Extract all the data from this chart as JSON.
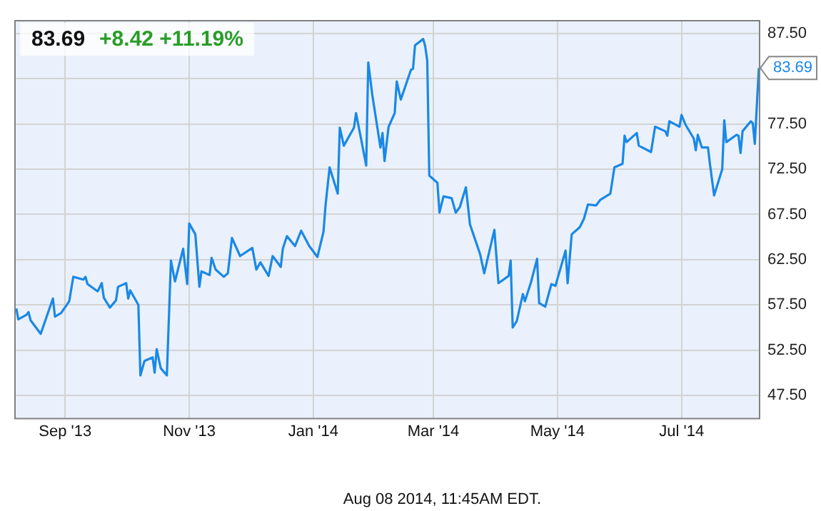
{
  "chart_data": {
    "type": "line",
    "title": "83.69",
    "subtitle": "+8.42  +11.19%",
    "annotations": [
      {
        "text": "83.69",
        "x": "2014-08-08",
        "y": 83.69
      },
      "Aug 08 2014, 11:45AM EDT."
    ],
    "xlim": [
      "2013-08-07",
      "2014-08-08"
    ],
    "xticks": [
      {
        "value": "2013-09-01",
        "label": "Sep '13"
      },
      {
        "value": "2013-11-01",
        "label": "Nov '13"
      },
      {
        "value": "2014-01-01",
        "label": "Jan '14"
      },
      {
        "value": "2014-03-01",
        "label": "Mar '14"
      },
      {
        "value": "2014-05-01",
        "label": "May '14"
      },
      {
        "value": "2014-07-01",
        "label": "Jul '14"
      }
    ],
    "ylim": [
      45,
      89
    ],
    "yticks": [
      {
        "value": 47.5,
        "label": "47.50"
      },
      {
        "value": 52.5,
        "label": "52.50"
      },
      {
        "value": 57.5,
        "label": "57.50"
      },
      {
        "value": 62.5,
        "label": "62.50"
      },
      {
        "value": 67.5,
        "label": "67.50"
      },
      {
        "value": 72.5,
        "label": "72.50"
      },
      {
        "value": 77.5,
        "label": "77.50"
      },
      {
        "value": 82.5,
        "label": null
      },
      {
        "value": 87.5,
        "label": "87.50"
      }
    ],
    "grid": true,
    "legend": false,
    "marker": "none",
    "line_style": "solid",
    "series": [
      {
        "color": "#1a88e6",
        "x": [
          "2013-08-08",
          "2013-08-09",
          "2013-08-13",
          "2013-08-14",
          "2013-08-15",
          "2013-08-20",
          "2013-08-26",
          "2013-08-27",
          "2013-08-30",
          "2013-09-03",
          "2013-09-05",
          "2013-09-10",
          "2013-09-11",
          "2013-09-12",
          "2013-09-17",
          "2013-09-19",
          "2013-09-20",
          "2013-09-23",
          "2013-09-26",
          "2013-09-27",
          "2013-10-01",
          "2013-10-02",
          "2013-10-03",
          "2013-10-07",
          "2013-10-08",
          "2013-10-10",
          "2013-10-14",
          "2013-10-15",
          "2013-10-16",
          "2013-10-18",
          "2013-10-21",
          "2013-10-23",
          "2013-10-25",
          "2013-10-29",
          "2013-10-31",
          "2013-11-01",
          "2013-11-04",
          "2013-11-06",
          "2013-11-07",
          "2013-11-11",
          "2013-11-12",
          "2013-11-14",
          "2013-11-18",
          "2013-11-20",
          "2013-11-22",
          "2013-11-26",
          "2013-12-02",
          "2013-12-04",
          "2013-12-06",
          "2013-12-10",
          "2013-12-12",
          "2013-12-16",
          "2013-12-17",
          "2013-12-19",
          "2013-12-23",
          "2013-12-26",
          "2013-12-30",
          "2014-01-03",
          "2014-01-06",
          "2014-01-07",
          "2014-01-09",
          "2014-01-13",
          "2014-01-14",
          "2014-01-16",
          "2014-01-21",
          "2014-01-22",
          "2014-01-27",
          "2014-01-28",
          "2014-01-30",
          "2014-02-03",
          "2014-02-04",
          "2014-02-05",
          "2014-02-07",
          "2014-02-10",
          "2014-02-11",
          "2014-02-13",
          "2014-02-18",
          "2014-02-19",
          "2014-02-20",
          "2014-02-24",
          "2014-02-25",
          "2014-02-26",
          "2014-02-27",
          "2014-03-03",
          "2014-03-04",
          "2014-03-06",
          "2014-03-10",
          "2014-03-12",
          "2014-03-14",
          "2014-03-17",
          "2014-03-19",
          "2014-03-24",
          "2014-03-26",
          "2014-03-31",
          "2014-04-02",
          "2014-04-07",
          "2014-04-08",
          "2014-04-09",
          "2014-04-11",
          "2014-04-14",
          "2014-04-15",
          "2014-04-18",
          "2014-04-21",
          "2014-04-22",
          "2014-04-25",
          "2014-04-28",
          "2014-04-30",
          "2014-05-05",
          "2014-05-06",
          "2014-05-08",
          "2014-05-12",
          "2014-05-14",
          "2014-05-16",
          "2014-05-20",
          "2014-05-22",
          "2014-05-27",
          "2014-05-29",
          "2014-06-02",
          "2014-06-03",
          "2014-06-04",
          "2014-06-09",
          "2014-06-10",
          "2014-06-16",
          "2014-06-18",
          "2014-06-23",
          "2014-06-24",
          "2014-06-25",
          "2014-06-30",
          "2014-07-01",
          "2014-07-03",
          "2014-07-07",
          "2014-07-08",
          "2014-07-09",
          "2014-07-11",
          "2014-07-14",
          "2014-07-15",
          "2014-07-17",
          "2014-07-21",
          "2014-07-22",
          "2014-07-23",
          "2014-07-28",
          "2014-07-29",
          "2014-07-30",
          "2014-07-31",
          "2014-08-04",
          "2014-08-05",
          "2014-08-06",
          "2014-08-08"
        ],
        "values": [
          57.1,
          55.9,
          56.4,
          56.7,
          55.8,
          54.3,
          58.2,
          56.2,
          56.6,
          57.9,
          60.6,
          60.3,
          60.6,
          59.8,
          59.0,
          59.9,
          58.3,
          57.2,
          58.0,
          59.5,
          59.9,
          58.2,
          59.1,
          57.5,
          49.7,
          51.3,
          51.7,
          50.0,
          52.6,
          50.5,
          49.7,
          62.4,
          60.1,
          63.7,
          59.8,
          66.5,
          65.3,
          59.5,
          61.2,
          60.8,
          62.7,
          61.4,
          60.6,
          61.0,
          64.9,
          62.9,
          63.8,
          61.4,
          62.2,
          60.7,
          62.9,
          61.7,
          63.7,
          65.1,
          64.0,
          65.7,
          64.0,
          62.8,
          65.6,
          68.5,
          72.7,
          69.8,
          77.1,
          75.1,
          77.1,
          78.7,
          72.9,
          84.3,
          80.7,
          74.9,
          76.5,
          73.4,
          77.2,
          78.7,
          82.2,
          80.2,
          83.5,
          83.6,
          86.2,
          86.9,
          86.1,
          84.5,
          71.8,
          71.0,
          67.7,
          69.5,
          69.3,
          67.7,
          68.3,
          70.5,
          66.4,
          63.1,
          61.0,
          65.8,
          59.9,
          60.7,
          62.4,
          55.0,
          55.7,
          58.7,
          57.9,
          60.0,
          62.6,
          57.7,
          57.3,
          59.8,
          59.6,
          63.5,
          59.9,
          65.3,
          66.1,
          67.0,
          68.6,
          68.5,
          69.1,
          69.8,
          72.7,
          73.1,
          76.2,
          75.5,
          76.5,
          75.1,
          74.4,
          77.2,
          76.7,
          76.2,
          77.8,
          77.2,
          78.5,
          77.4,
          75.9,
          74.6,
          76.3,
          74.9,
          74.9,
          73.0,
          69.6,
          72.5,
          77.9,
          75.5,
          76.3,
          76.2,
          74.3,
          76.7,
          77.8,
          77.6,
          75.3,
          83.69
        ]
      }
    ]
  }
}
